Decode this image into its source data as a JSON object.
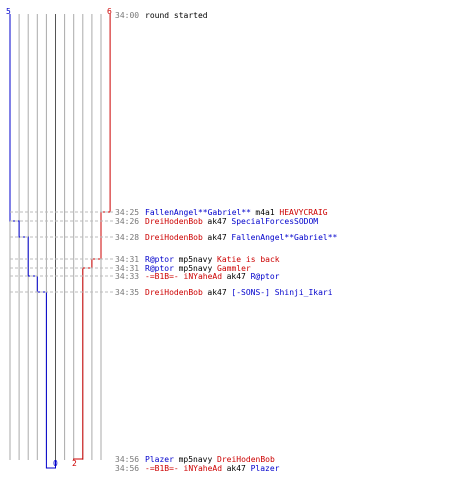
{
  "teams": {
    "blue": {
      "start_count": "5",
      "end_count": "0",
      "color": "#0000cc"
    },
    "red": {
      "start_count": "6",
      "end_count": "2",
      "color": "#cc0000"
    }
  },
  "colors": {
    "grid": "#aaaaaa",
    "center": "#555555",
    "time": "#777777",
    "neutral": "#000000",
    "dash": "#bbbbbb"
  },
  "events": [
    {
      "time": "34:00",
      "kind": "info",
      "text": "round started"
    },
    {
      "time": "34:25",
      "kind": "kill",
      "killer": "FallenAngel**Gabriel**",
      "killer_team": "blue",
      "weapon": "m4a1",
      "victim": "HEAVYCRAIG",
      "victim_team": "red"
    },
    {
      "time": "34:26",
      "kind": "kill",
      "killer": "DreiHodenBob",
      "killer_team": "red",
      "weapon": "ak47",
      "victim": "SpecialForcesSODOM",
      "victim_team": "blue"
    },
    {
      "time": "34:28",
      "kind": "kill",
      "killer": "DreiHodenBob",
      "killer_team": "red",
      "weapon": "ak47",
      "victim": "FallenAngel**Gabriel**",
      "victim_team": "blue"
    },
    {
      "time": "34:31",
      "kind": "kill",
      "killer": "R@ptor",
      "killer_team": "blue",
      "weapon": "mp5navy",
      "victim": "Katie is back",
      "victim_team": "red"
    },
    {
      "time": "34:31",
      "kind": "kill",
      "killer": "R@ptor",
      "killer_team": "blue",
      "weapon": "mp5navy",
      "victim": "Gammler",
      "victim_team": "red"
    },
    {
      "time": "34:33",
      "kind": "kill",
      "killer": "-=B1B=- iNYaheAd",
      "killer_team": "red",
      "weapon": "ak47",
      "victim": "R@ptor",
      "victim_team": "blue"
    },
    {
      "time": "34:35",
      "kind": "kill",
      "killer": "DreiHodenBob",
      "killer_team": "red",
      "weapon": "ak47",
      "victim": "[-SONS-] Shinji_Ikari",
      "victim_team": "blue"
    },
    {
      "time": "34:56",
      "kind": "kill",
      "killer": "Plazer",
      "killer_team": "blue",
      "weapon": "mp5navy",
      "victim": "DreiHodenBob",
      "victim_team": "red"
    },
    {
      "time": "34:56",
      "kind": "kill",
      "killer": "-=B1B=- iNYaheAd",
      "killer_team": "red",
      "weapon": "ak47",
      "victim": "Plazer",
      "victim_team": "blue"
    }
  ]
}
